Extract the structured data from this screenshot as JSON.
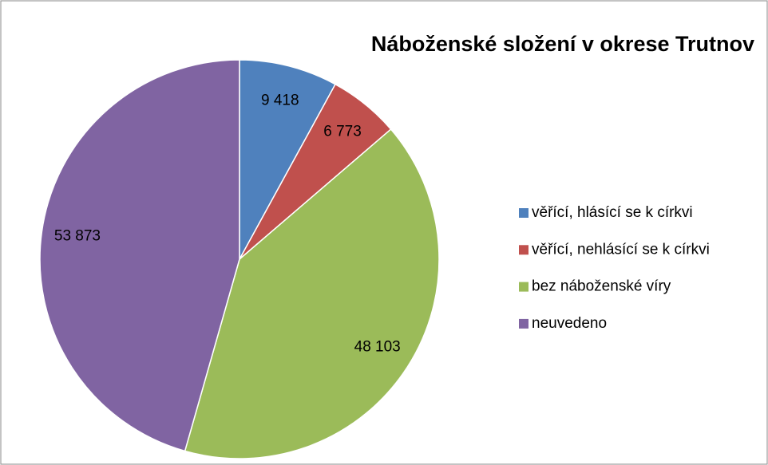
{
  "chart_data": {
    "type": "pie",
    "title": "Náboženské složení v okrese Trutnov",
    "categories": [
      "věřící, hlásící se k církvi",
      "věřící, nehlásící se k církvi",
      "bez náboženské víry",
      "neuvedeno"
    ],
    "values": [
      9418,
      6773,
      48103,
      53873
    ],
    "value_labels": [
      "9 418",
      "6 773",
      "48 103",
      "53 873"
    ],
    "colors": [
      "#4f81bd",
      "#c0504d",
      "#9bbb59",
      "#8064a2"
    ],
    "legend": "right"
  }
}
